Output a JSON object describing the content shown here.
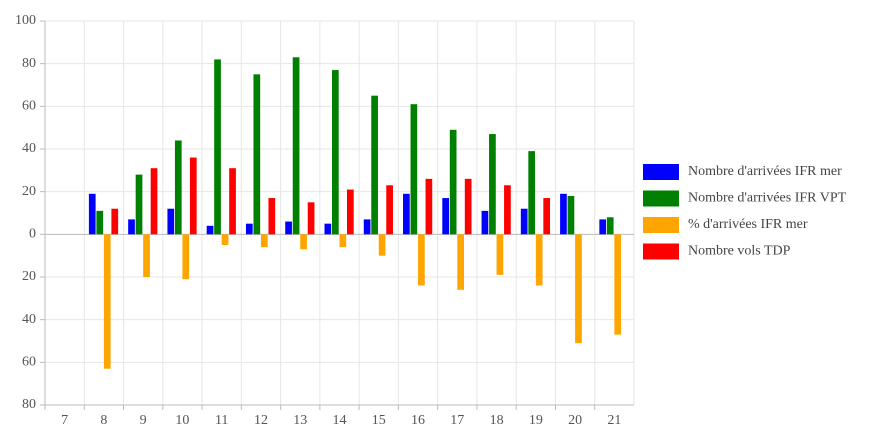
{
  "chart_data": {
    "type": "bar",
    "categories": [
      "7",
      "8",
      "9",
      "10",
      "11",
      "12",
      "13",
      "14",
      "15",
      "16",
      "17",
      "18",
      "19",
      "20",
      "21"
    ],
    "series": [
      {
        "name": "Nombre d'arrivées IFR mer",
        "color": "#0000ff",
        "values": [
          null,
          19,
          7,
          12,
          4,
          5,
          6,
          5,
          7,
          19,
          17,
          11,
          12,
          19,
          7
        ]
      },
      {
        "name": "Nombre d'arrivées IFR VPT",
        "color": "#008000",
        "values": [
          null,
          11,
          28,
          44,
          82,
          75,
          83,
          77,
          65,
          61,
          49,
          47,
          39,
          18,
          8
        ]
      },
      {
        "name": "% d'arrivées IFR mer",
        "color": "#ffa500",
        "values": [
          null,
          -63,
          -20,
          -21,
          -5,
          -6,
          -7,
          -6,
          -10,
          -24,
          -26,
          -19,
          -24,
          -51,
          -47
        ]
      },
      {
        "name": "Nombre vols TDP",
        "color": "#ff0000",
        "values": [
          null,
          12,
          31,
          36,
          31,
          17,
          15,
          21,
          23,
          26,
          26,
          23,
          17,
          null,
          null
        ]
      }
    ],
    "ylim": [
      -80,
      100
    ],
    "yticks": [
      100,
      80,
      60,
      40,
      20,
      0,
      {
        "value": -20,
        "label": "20"
      },
      {
        "value": -40,
        "label": "40"
      },
      {
        "value": -60,
        "label": "60"
      },
      {
        "value": -80,
        "label": "80"
      }
    ],
    "grid": true,
    "legend": "right"
  }
}
